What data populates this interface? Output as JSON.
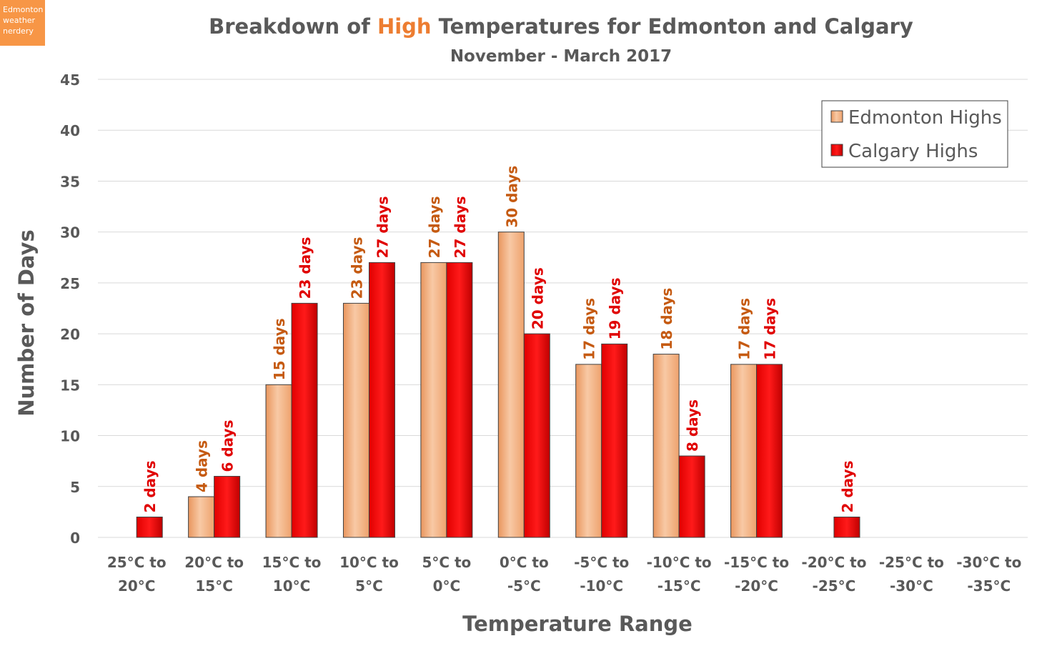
{
  "chart_data": {
    "type": "bar",
    "logo": [
      "Edmonton",
      "weather",
      "nerdery"
    ],
    "title": [
      "Breakdown of ",
      "High",
      " Temperatures for Edmonton and Calgary"
    ],
    "subtitle": "November - March 2017",
    "x_label": "Temperature Range",
    "y_label": "Number of Days",
    "categories": [
      [
        "25°C to",
        "20°C"
      ],
      [
        "20°C to",
        "15°C"
      ],
      [
        "15°C to",
        "10°C"
      ],
      [
        "10°C to",
        "5°C"
      ],
      [
        "5°C to",
        "0°C"
      ],
      [
        "0°C to",
        "-5°C"
      ],
      [
        "-5°C to",
        "-10°C"
      ],
      [
        "-10°C to",
        "-15°C"
      ],
      [
        "-15°C to",
        "-20°C"
      ],
      [
        "-20°C to",
        "-25°C"
      ],
      [
        "-25°C to",
        "-30°C"
      ],
      [
        "-30°C to",
        "-35°C"
      ]
    ],
    "series": [
      {
        "name": "Edmonton Highs",
        "color": "#f4b183",
        "label_color": "#c55a11",
        "values": [
          0,
          4,
          15,
          23,
          27,
          30,
          17,
          18,
          17,
          0,
          0,
          0
        ],
        "value_labels": [
          null,
          "4 days",
          "15 days",
          "23 days",
          "27 days",
          "30 days",
          "17 days",
          "18 days",
          "17 days",
          null,
          null,
          null
        ]
      },
      {
        "name": "Calgary Highs",
        "color": "#ff0000",
        "label_color": "#e00000",
        "values": [
          2,
          6,
          23,
          27,
          27,
          20,
          19,
          8,
          17,
          2,
          0,
          0
        ],
        "value_labels": [
          "2 days",
          "6 days",
          "23 days",
          "27 days",
          "27 days",
          "20 days",
          "19 days",
          "8 days",
          "17 days",
          "2 days",
          null,
          null
        ]
      }
    ],
    "ylim": [
      0,
      45
    ],
    "yticks": [
      0,
      5,
      10,
      15,
      20,
      25,
      30,
      35,
      40,
      45
    ],
    "grid": true,
    "legend": "top-right"
  }
}
